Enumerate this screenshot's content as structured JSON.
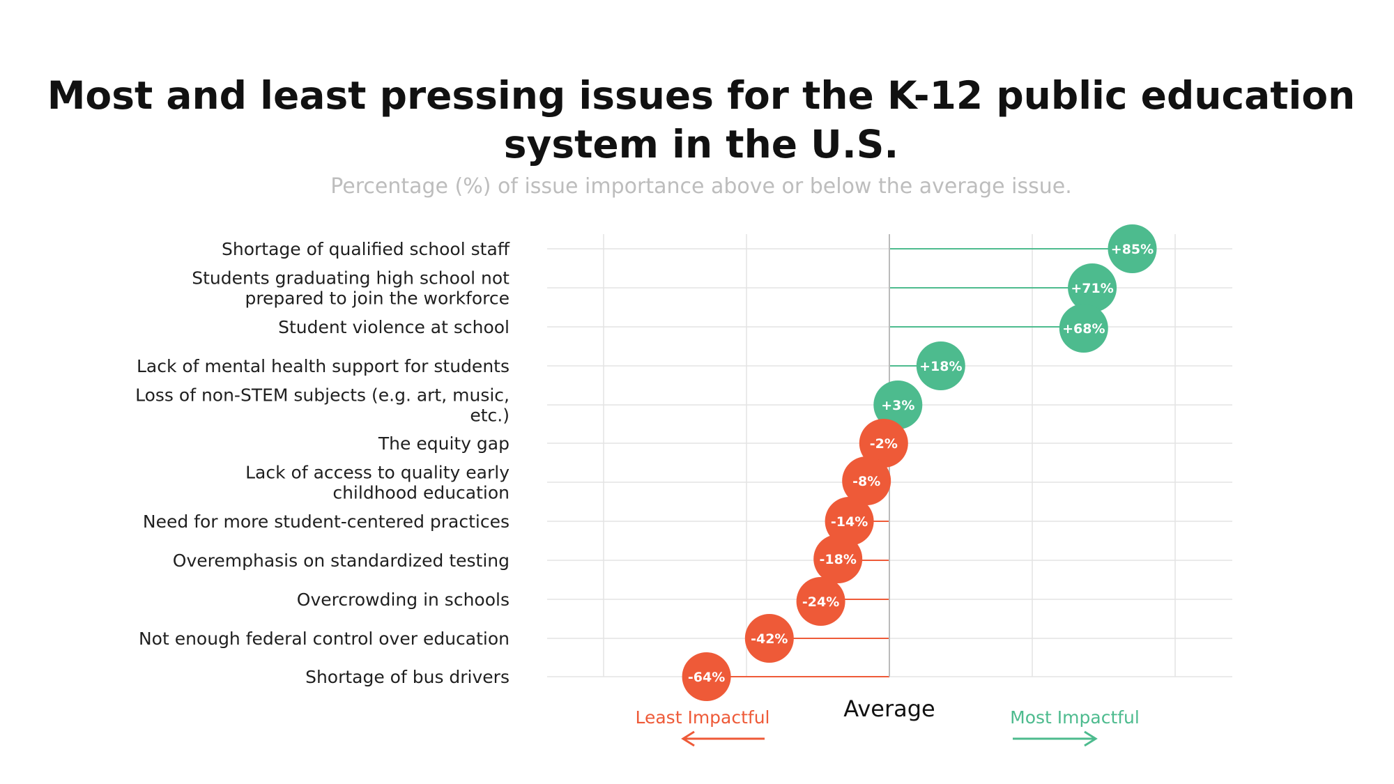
{
  "chart_data": {
    "type": "scatter",
    "title": "Most and least pressing issues for the K-12 public education system in the U.S.",
    "subtitle": "Percentage (%) of issue importance above or below the average issue.",
    "categories": [
      "Shortage of qualified school staff",
      "Students graduating high school not prepared to join the workforce",
      "Student violence at school",
      "Lack of mental health support for students",
      "Loss of non-STEM subjects (e.g. art, music, etc.)",
      "The equity gap",
      "Lack of access to quality early childhood education",
      "Need for more student-centered practices",
      "Overemphasis on standardized testing",
      "Overcrowding in schools",
      "Not enough federal control over education",
      "Shortage of bus drivers"
    ],
    "category_lines": [
      [
        "Shortage of qualified school staff"
      ],
      [
        "Students graduating high school not",
        "prepared to join the workforce"
      ],
      [
        "Student violence at school"
      ],
      [
        "Lack of mental health support for students"
      ],
      [
        "Loss of non-STEM subjects (e.g. art, music,",
        "etc.)"
      ],
      [
        "The equity gap"
      ],
      [
        "Lack of access to quality early",
        "childhood education"
      ],
      [
        "Need for more student-centered practices"
      ],
      [
        "Overemphasis on standardized testing"
      ],
      [
        "Overcrowding in schools"
      ],
      [
        "Not enough federal control over education"
      ],
      [
        "Shortage of bus drivers"
      ]
    ],
    "values": [
      85,
      71,
      68,
      18,
      3,
      -2,
      -8,
      -14,
      -18,
      -24,
      -42,
      -64
    ],
    "value_labels": [
      "+85%",
      "+71%",
      "+68%",
      "+18%",
      "+3%",
      "-2%",
      "-8%",
      "-14%",
      "-18%",
      "-24%",
      "-42%",
      "-64%"
    ],
    "xlim": [
      -100,
      100
    ],
    "grid": true,
    "reference_label": "Average",
    "left_direction_label": "Least Impactful",
    "right_direction_label": "Most Impactful",
    "colors": {
      "positive": "#4dbb8e",
      "negative": "#ee5a38",
      "grid": "#e3e3e3",
      "axis": "#bbbbbb"
    }
  }
}
